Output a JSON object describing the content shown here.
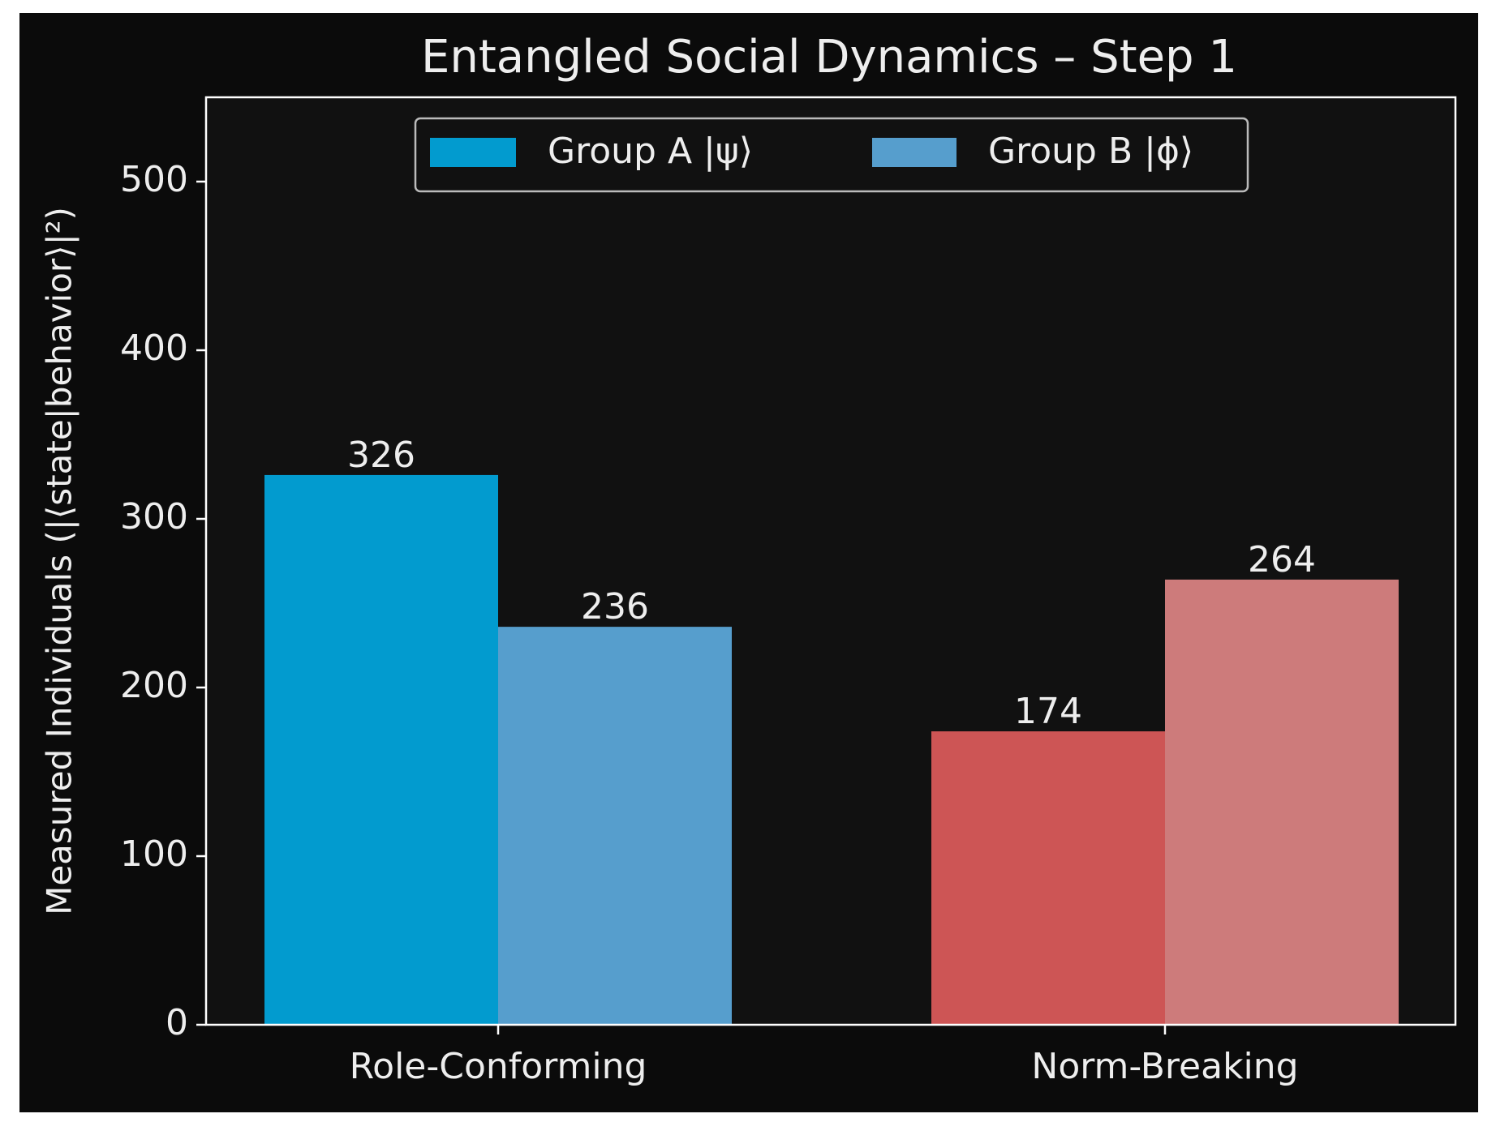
{
  "chart_data": {
    "type": "bar",
    "title": "Entangled Social Dynamics – Step 1",
    "xlabel": "",
    "ylabel": "Measured Individuals (|⟨state|behavior⟩|²)",
    "categories": [
      "Role-Conforming",
      "Norm-Breaking"
    ],
    "series": [
      {
        "name": "Group A |ψ⟩",
        "values": [
          326,
          174
        ],
        "colors": [
          "#029bcf",
          "#cd5555"
        ]
      },
      {
        "name": "Group B |ϕ⟩",
        "values": [
          236,
          264
        ],
        "colors": [
          "#569ecd",
          "#cd7b7b"
        ]
      }
    ],
    "legend_colors": [
      "#029bcf",
      "#569ecd"
    ],
    "ylim": [
      0,
      550
    ],
    "yticks": [
      0,
      100,
      200,
      300,
      400,
      500
    ],
    "grid": false,
    "legend_position": "top-center",
    "colors": {
      "figure_bg": "#0b0b0b",
      "axes_bg": "#111111",
      "text": "#eeeeee",
      "spine": "#ffffff"
    }
  }
}
